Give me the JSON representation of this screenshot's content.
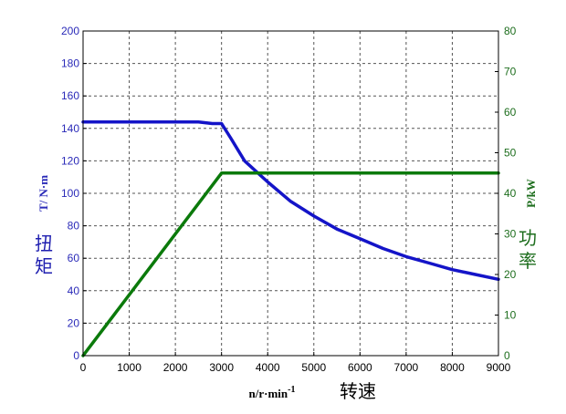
{
  "chart_data": {
    "type": "line",
    "x_axis": {
      "label": "n/r·min",
      "label_sup": "-1",
      "label_cn": "转速",
      "range": [
        0,
        9000
      ],
      "ticks": [
        "0",
        "1000",
        "2000",
        "3000",
        "4000",
        "5000",
        "6000",
        "7000",
        "8000",
        "9000"
      ]
    },
    "y_left": {
      "label": "T/ N·m",
      "label_cn": [
        "扭",
        "矩"
      ],
      "range": [
        0,
        200
      ],
      "ticks": [
        "0",
        "20",
        "40",
        "60",
        "80",
        "100",
        "120",
        "140",
        "160",
        "180",
        "200"
      ],
      "color": "#2a2ab8"
    },
    "y_right": {
      "label": "P/kW",
      "label_cn": [
        "功",
        "率"
      ],
      "range": [
        0,
        80
      ],
      "ticks": [
        "0",
        "10",
        "20",
        "30",
        "40",
        "50",
        "60",
        "70",
        "80"
      ],
      "color": "#1e6e1e"
    },
    "grid": true,
    "series": [
      {
        "axis": "left",
        "color": "#1414c8",
        "x": [
          0,
          1000,
          2000,
          2500,
          2800,
          3000,
          3200,
          3500,
          4000,
          4500,
          5000,
          5500,
          6000,
          6500,
          7000,
          7500,
          8000,
          8500,
          9000
        ],
        "y": [
          144,
          144,
          144,
          144,
          143,
          143,
          134,
          120,
          107,
          95,
          86,
          78,
          72,
          66,
          61,
          57,
          53,
          50,
          47
        ]
      },
      {
        "axis": "right",
        "color": "#0b7a0b",
        "x": [
          0,
          3000,
          9000
        ],
        "y": [
          0,
          45,
          45
        ]
      }
    ]
  }
}
